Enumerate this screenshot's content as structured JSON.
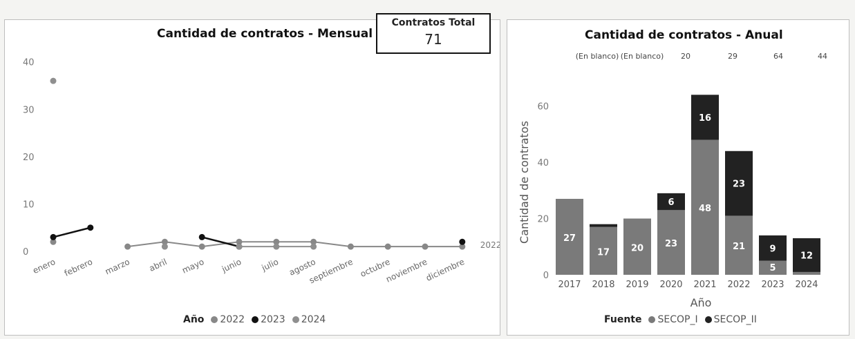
{
  "kpi": {
    "label": "Contratos Total",
    "value": "71"
  },
  "colors": {
    "series_2022": "#888888",
    "series_2023": "#111111",
    "series_2024": "#8f8f8f",
    "secop_i": "#7a7a7a",
    "secop_ii": "#222222"
  },
  "chart_data": [
    {
      "type": "line",
      "title": "Cantidad de contratos - Mensual",
      "categories": [
        "enero",
        "febrero",
        "marzo",
        "abril",
        "mayo",
        "junio",
        "julio",
        "agosto",
        "septiembre",
        "octubre",
        "noviembre",
        "diciembre"
      ],
      "yticks": [
        0,
        10,
        20,
        30,
        40
      ],
      "ylim": [
        0,
        42
      ],
      "legend_title": "Año",
      "end_label": "2022",
      "series": [
        {
          "name": "2022",
          "values": [
            2,
            null,
            1,
            2,
            1,
            2,
            2,
            2,
            1,
            1,
            1,
            1
          ]
        },
        {
          "name": "2023",
          "values": [
            3,
            5,
            null,
            null,
            3,
            1,
            null,
            null,
            null,
            null,
            null,
            2
          ]
        },
        {
          "name": "2024",
          "values": [
            36,
            null,
            null,
            1,
            null,
            1,
            1,
            1,
            null,
            null,
            null,
            null
          ]
        }
      ]
    },
    {
      "type": "bar",
      "stacked": true,
      "title": "Cantidad de contratos - Anual",
      "categories": [
        "2017",
        "2018",
        "2019",
        "2020",
        "2021",
        "2022",
        "2023",
        "2024"
      ],
      "top_labels": [
        "(En blanco)",
        "(En blanco)",
        "20",
        "29",
        "64",
        "44"
      ],
      "ylabel": "Cantidad de contratos",
      "xlabel": "Año",
      "yticks": [
        0,
        20,
        40,
        60
      ],
      "ylim": [
        0,
        68
      ],
      "legend_title": "Fuente",
      "series": [
        {
          "name": "SECOP_I",
          "values": [
            27,
            17,
            20,
            23,
            48,
            21,
            5,
            1
          ]
        },
        {
          "name": "SECOP_II",
          "values": [
            0,
            1,
            0,
            6,
            16,
            23,
            9,
            12
          ]
        }
      ],
      "segment_labels": {
        "SECOP_I": [
          "27",
          "17",
          "20",
          "23",
          "48",
          "21",
          "5",
          ""
        ],
        "SECOP_II": [
          "",
          "",
          "",
          "6",
          "16",
          "23",
          "9",
          "12"
        ]
      }
    }
  ]
}
